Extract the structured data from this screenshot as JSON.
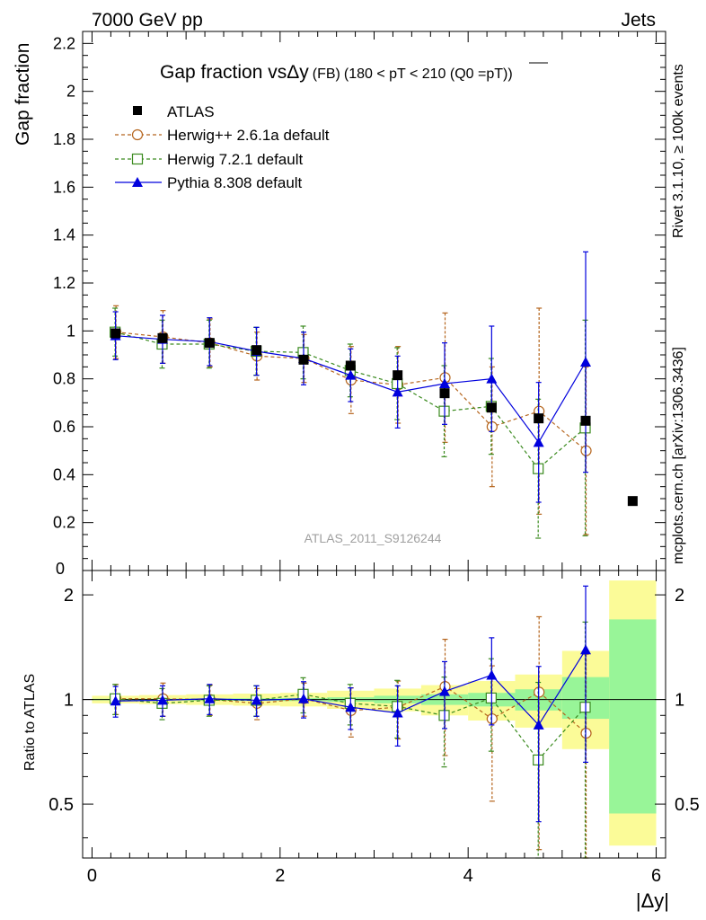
{
  "header": {
    "energy_label": "7000 GeV pp",
    "process_label": "Jets",
    "analysis_id": "ATLAS_2011_S9126244",
    "side_label_top": "Rivet 3.1.10, ≥ 100k events",
    "side_label_bottom": "mcplots.cern.ch [arXiv:1306.3436]"
  },
  "chart_data": [
    {
      "type": "scatter",
      "panel": "main",
      "title": "Gap fraction vsΔy",
      "title_small": "(FB)",
      "title_range": "(180 < pT < 210 (Q0 =",
      "title_pt": "pT",
      "title_close": "))",
      "ylabel": "Gap fraction",
      "xlabel": "|Δy|",
      "xlim": [
        -0.1,
        6.1
      ],
      "ylim": [
        0,
        2.25
      ],
      "y_ticks": [
        0.2,
        0.4,
        0.6,
        0.8,
        1,
        1.2,
        1.4,
        1.6,
        1.8,
        2,
        2.2
      ],
      "y_tick_labels": [
        "0.2",
        "0.4",
        "0.6",
        "0.8",
        "1",
        "1.2",
        "1.4",
        "1.6",
        "1.8",
        "2",
        "2.2"
      ],
      "y_zero_label": "0",
      "x": [
        0.25,
        0.75,
        1.25,
        1.75,
        2.25,
        2.75,
        3.25,
        3.75,
        4.25,
        4.75,
        5.25,
        5.75
      ],
      "series": [
        {
          "name": "ATLAS",
          "key": "atlas",
          "values": [
            0.99,
            0.97,
            0.95,
            0.92,
            0.88,
            0.855,
            0.815,
            0.74,
            0.68,
            0.635,
            0.625,
            0.29
          ],
          "errors": [
            0.005,
            0.005,
            0.005,
            0.005,
            0.005,
            0.005,
            0.005,
            0.005,
            0.005,
            0.005,
            0.005,
            0.005
          ]
        },
        {
          "name": "Herwig++ 2.6.1a default",
          "key": "herwigpp",
          "values": [
            0.995,
            0.975,
            0.95,
            0.895,
            0.885,
            0.795,
            0.775,
            0.805,
            0.6,
            0.665,
            0.5
          ],
          "errors": [
            0.11,
            0.11,
            0.1,
            0.1,
            0.1,
            0.14,
            0.16,
            0.27,
            0.25,
            0.43,
            0.35
          ]
        },
        {
          "name": "Herwig 7.2.1 default",
          "key": "herwig7",
          "values": [
            0.995,
            0.945,
            0.945,
            0.915,
            0.91,
            0.835,
            0.78,
            0.665,
            0.685,
            0.425,
            0.595
          ],
          "errors": [
            0.1,
            0.1,
            0.1,
            0.1,
            0.11,
            0.11,
            0.15,
            0.19,
            0.2,
            0.29,
            0.45
          ]
        },
        {
          "name": "Pythia 8.308 default",
          "key": "pythia",
          "values": [
            0.98,
            0.965,
            0.955,
            0.915,
            0.885,
            0.815,
            0.745,
            0.78,
            0.8,
            0.535,
            0.87
          ],
          "errors": [
            0.1,
            0.1,
            0.1,
            0.1,
            0.11,
            0.11,
            0.15,
            0.17,
            0.22,
            0.25,
            0.46
          ]
        }
      ]
    },
    {
      "type": "scatter",
      "panel": "ratio",
      "ylabel": "Ratio to ATLAS",
      "xlabel": "|Δy|",
      "xlim": [
        -0.1,
        6.1
      ],
      "ylim": [
        0.35,
        2.35
      ],
      "y_ticks": [
        0.5,
        1,
        2
      ],
      "y_tick_labels": [
        "0.5",
        "1",
        "2"
      ],
      "x_ticks": [
        0,
        2,
        4,
        6
      ],
      "x_tick_labels": [
        "0",
        "2",
        "4",
        "6"
      ],
      "uncertainty_bands": {
        "x_edges": [
          0,
          0.5,
          1,
          1.5,
          2,
          2.5,
          3,
          3.5,
          4,
          4.5,
          5,
          5.5,
          6
        ],
        "stat_low": [
          0.995,
          0.994,
          0.993,
          0.992,
          0.99,
          0.985,
          0.975,
          0.965,
          0.955,
          0.93,
          0.88,
          0.47
        ],
        "stat_high": [
          1.005,
          1.006,
          1.007,
          1.008,
          1.01,
          1.015,
          1.025,
          1.035,
          1.045,
          1.07,
          1.16,
          1.7
        ],
        "total_low": [
          0.975,
          0.97,
          0.965,
          0.96,
          0.955,
          0.94,
          0.925,
          0.9,
          0.87,
          0.83,
          0.72,
          0.38
        ],
        "total_high": [
          1.025,
          1.03,
          1.035,
          1.04,
          1.045,
          1.06,
          1.075,
          1.1,
          1.13,
          1.18,
          1.38,
          2.2
        ]
      },
      "series": [
        {
          "name": "Herwig++ 2.6.1a default",
          "key": "herwigpp",
          "values": [
            1.005,
            1.005,
            1.0,
            0.975,
            1.005,
            0.93,
            0.95,
            1.09,
            0.88,
            1.05,
            0.8
          ],
          "errors": [
            0.1,
            0.11,
            0.1,
            0.1,
            0.11,
            0.15,
            0.18,
            0.4,
            0.37,
            0.68,
            0.55
          ]
        },
        {
          "name": "Herwig 7.2.1 default",
          "key": "herwig7",
          "values": [
            1.005,
            0.975,
            0.995,
            0.995,
            1.035,
            0.975,
            0.955,
            0.9,
            1.01,
            0.67,
            0.95
          ],
          "errors": [
            0.1,
            0.1,
            0.1,
            0.1,
            0.12,
            0.13,
            0.18,
            0.26,
            0.3,
            0.45,
            0.72
          ]
        },
        {
          "name": "Pythia 8.308 default",
          "key": "pythia",
          "values": [
            0.99,
            0.995,
            1.005,
            0.995,
            1.005,
            0.95,
            0.915,
            1.055,
            1.175,
            0.845,
            1.39
          ],
          "errors": [
            0.1,
            0.1,
            0.1,
            0.1,
            0.12,
            0.13,
            0.18,
            0.23,
            0.33,
            0.4,
            0.73
          ]
        }
      ]
    }
  ],
  "colors": {
    "atlas": "#000000",
    "herwigpp": "#b5651d",
    "herwig7": "#3a8a1e",
    "pythia": "#0000dd",
    "stat_band": "#98f598",
    "total_band": "#fbfb98",
    "watermark": "#a0a0a0",
    "side_text": "#8a8a8a"
  }
}
